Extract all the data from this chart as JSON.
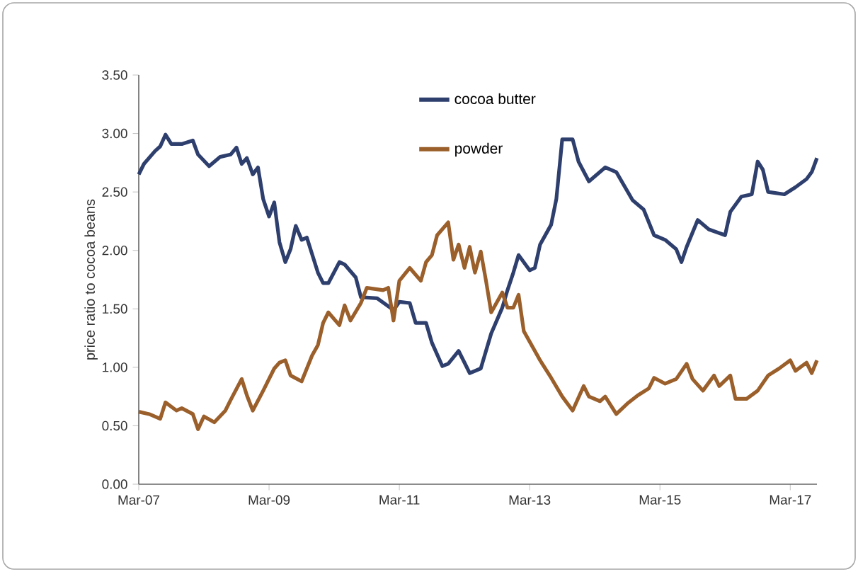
{
  "chart_data": {
    "type": "line",
    "ylabel": "price ratio to cocoa beans",
    "xlim": [
      "2007-03",
      "2017-08"
    ],
    "xticks": [
      {
        "value": "2007-03",
        "label": "Mar-07"
      },
      {
        "value": "2009-03",
        "label": "Mar-09"
      },
      {
        "value": "2011-03",
        "label": "Mar-11"
      },
      {
        "value": "2013-03",
        "label": "Mar-13"
      },
      {
        "value": "2015-03",
        "label": "Mar-15"
      },
      {
        "value": "2017-03",
        "label": "Mar-17"
      }
    ],
    "ylim": [
      0,
      3.5
    ],
    "yticks": [
      {
        "value": 0,
        "label": "0.00"
      },
      {
        "value": 0.5,
        "label": "0.50"
      },
      {
        "value": 1,
        "label": "1.00"
      },
      {
        "value": 1.5,
        "label": "1.50"
      },
      {
        "value": 2,
        "label": "2.00"
      },
      {
        "value": 2.5,
        "label": "2.50"
      },
      {
        "value": 3,
        "label": "3.00"
      },
      {
        "value": 3.5,
        "label": "3.50"
      }
    ],
    "grid": false,
    "legend": "top",
    "marker": "none",
    "line_style": "solid",
    "series": [
      {
        "name": "cocoa butter",
        "color": "#2e3f6e",
        "x": [
          "2007-03",
          "2007-04",
          "2007-06",
          "2007-07",
          "2007-08",
          "2007-09",
          "2007-11",
          "2008-01",
          "2008-02",
          "2008-04",
          "2008-06",
          "2008-08",
          "2008-09",
          "2008-10",
          "2008-11",
          "2008-12",
          "2009-01",
          "2009-02",
          "2009-03",
          "2009-04",
          "2009-05",
          "2009-06",
          "2009-07",
          "2009-08",
          "2009-09",
          "2009-10",
          "2009-12",
          "2010-01",
          "2010-02",
          "2010-04",
          "2010-05",
          "2010-07",
          "2010-08",
          "2010-11",
          "2011-02",
          "2011-03",
          "2011-05",
          "2011-06",
          "2011-08",
          "2011-09",
          "2011-11",
          "2011-12",
          "2012-02",
          "2012-03",
          "2012-04",
          "2012-06",
          "2012-07",
          "2012-08",
          "2012-10",
          "2012-11",
          "2012-12",
          "2013-01",
          "2013-03",
          "2013-04",
          "2013-05",
          "2013-07",
          "2013-08",
          "2013-09",
          "2013-11",
          "2013-12",
          "2014-02",
          "2014-05",
          "2014-07",
          "2014-10",
          "2014-12",
          "2015-02",
          "2015-04",
          "2015-06",
          "2015-07",
          "2015-08",
          "2015-10",
          "2015-12",
          "2016-03",
          "2016-04",
          "2016-06",
          "2016-08",
          "2016-09",
          "2016-10",
          "2016-11",
          "2017-02",
          "2017-04",
          "2017-06",
          "2017-07",
          "2017-08"
        ],
        "values": [
          2.65,
          2.74,
          2.85,
          2.89,
          2.99,
          2.91,
          2.91,
          2.94,
          2.82,
          2.72,
          2.8,
          2.82,
          2.88,
          2.74,
          2.79,
          2.65,
          2.71,
          2.44,
          2.29,
          2.41,
          2.07,
          1.9,
          2.01,
          2.21,
          2.09,
          2.11,
          1.81,
          1.72,
          1.72,
          1.9,
          1.88,
          1.77,
          1.6,
          1.59,
          1.49,
          1.56,
          1.55,
          1.38,
          1.38,
          1.21,
          1.01,
          1.03,
          1.14,
          1.04,
          0.95,
          0.99,
          1.14,
          1.29,
          1.51,
          1.66,
          1.81,
          1.96,
          1.83,
          1.85,
          2.05,
          2.22,
          2.44,
          2.95,
          2.95,
          2.76,
          2.59,
          2.71,
          2.67,
          2.43,
          2.35,
          2.13,
          2.09,
          2.01,
          1.9,
          2.03,
          2.26,
          2.18,
          2.13,
          2.33,
          2.46,
          2.48,
          2.76,
          2.69,
          2.5,
          2.48,
          2.54,
          2.61,
          2.67,
          2.79
        ]
      },
      {
        "name": "powder",
        "color": "#9a5f2a",
        "x": [
          "2007-03",
          "2007-05",
          "2007-07",
          "2007-08",
          "2007-10",
          "2007-11",
          "2008-01",
          "2008-02",
          "2008-03",
          "2008-05",
          "2008-07",
          "2008-08",
          "2008-10",
          "2008-11",
          "2008-12",
          "2009-02",
          "2009-04",
          "2009-05",
          "2009-06",
          "2009-07",
          "2009-09",
          "2009-11",
          "2009-12",
          "2010-01",
          "2010-02",
          "2010-04",
          "2010-05",
          "2010-06",
          "2010-08",
          "2010-09",
          "2010-12",
          "2011-01",
          "2011-02",
          "2011-03",
          "2011-05",
          "2011-07",
          "2011-08",
          "2011-09",
          "2011-10",
          "2011-12",
          "2012-01",
          "2012-02",
          "2012-03",
          "2012-04",
          "2012-05",
          "2012-06",
          "2012-07",
          "2012-08",
          "2012-10",
          "2012-11",
          "2012-12",
          "2013-01",
          "2013-02",
          "2013-04",
          "2013-05",
          "2013-07",
          "2013-09",
          "2013-11",
          "2014-01",
          "2014-02",
          "2014-04",
          "2014-05",
          "2014-07",
          "2014-09",
          "2014-11",
          "2015-01",
          "2015-02",
          "2015-04",
          "2015-06",
          "2015-08",
          "2015-09",
          "2015-11",
          "2016-01",
          "2016-02",
          "2016-04",
          "2016-05",
          "2016-07",
          "2016-09",
          "2016-11",
          "2017-01",
          "2017-03",
          "2017-04",
          "2017-06",
          "2017-07",
          "2017-08"
        ],
        "values": [
          0.62,
          0.6,
          0.56,
          0.7,
          0.63,
          0.65,
          0.6,
          0.47,
          0.58,
          0.53,
          0.63,
          0.72,
          0.9,
          0.76,
          0.63,
          0.8,
          0.99,
          1.04,
          1.06,
          0.93,
          0.88,
          1.1,
          1.19,
          1.38,
          1.47,
          1.36,
          1.53,
          1.4,
          1.55,
          1.68,
          1.66,
          1.68,
          1.4,
          1.74,
          1.85,
          1.74,
          1.9,
          1.96,
          2.13,
          2.24,
          1.92,
          2.05,
          1.85,
          2.03,
          1.81,
          1.99,
          1.74,
          1.47,
          1.64,
          1.51,
          1.51,
          1.62,
          1.31,
          1.14,
          1.06,
          0.91,
          0.75,
          0.63,
          0.84,
          0.75,
          0.71,
          0.75,
          0.6,
          0.69,
          0.76,
          0.82,
          0.91,
          0.86,
          0.9,
          1.03,
          0.9,
          0.8,
          0.93,
          0.84,
          0.93,
          0.73,
          0.73,
          0.8,
          0.93,
          0.99,
          1.06,
          0.97,
          1.04,
          0.95,
          1.06
        ]
      }
    ]
  }
}
